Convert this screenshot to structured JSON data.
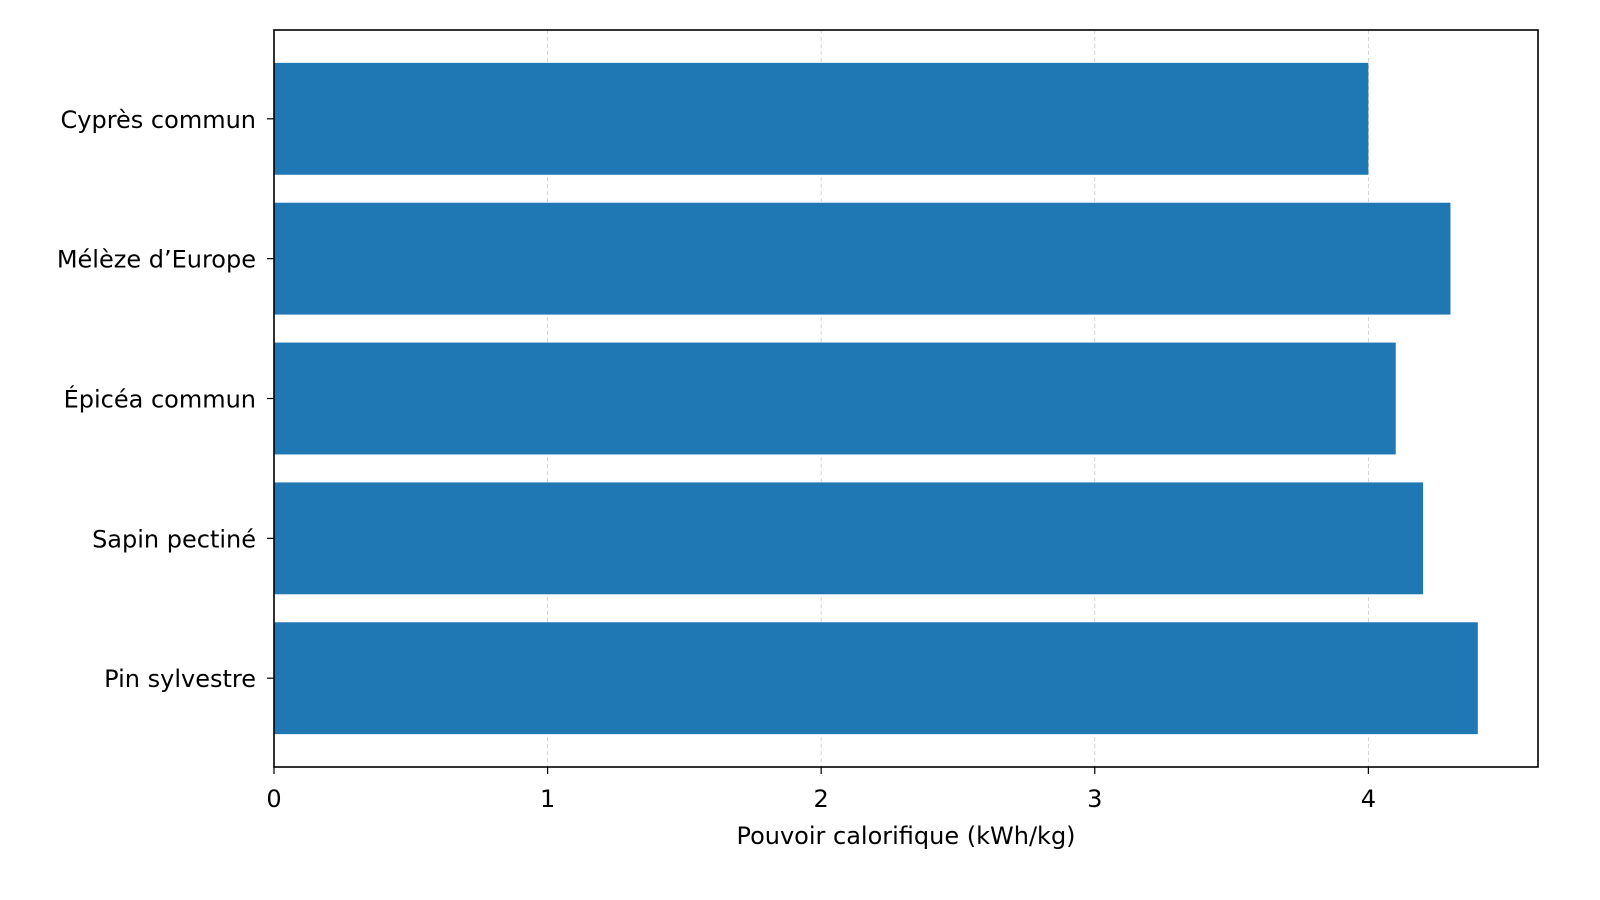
{
  "chart_data": {
    "type": "barh",
    "categories": [
      "Cyprès commun",
      "Mélèze d’Europe",
      "Épicéa commun",
      "Sapin pectiné",
      "Pin sylvestre"
    ],
    "values": [
      4.0,
      4.3,
      4.1,
      4.2,
      4.4
    ],
    "color": "#1f77b4",
    "xlabel": "Pouvoir calorifique (kWh/kg)",
    "xlim": [
      0,
      4.62
    ],
    "xticks": [
      0,
      1,
      2,
      3,
      4
    ],
    "grid": true
  }
}
